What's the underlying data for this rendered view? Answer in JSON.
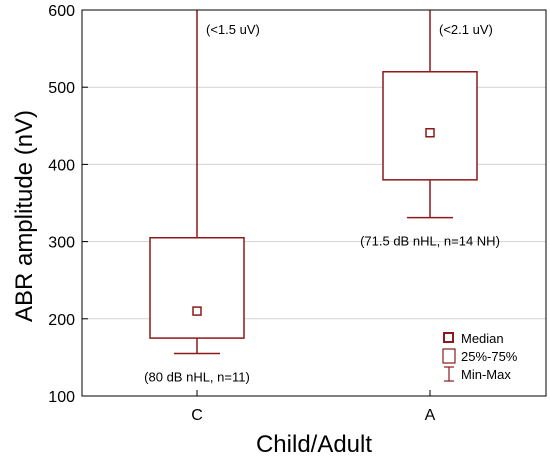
{
  "chart_data": {
    "type": "box",
    "xlabel": "Child/Adult",
    "ylabel": "ABR amplitude (nV)",
    "ylim": [
      100,
      600
    ],
    "yticks": [
      100,
      200,
      300,
      400,
      500,
      600
    ],
    "grid": true,
    "categories": [
      "C",
      "A"
    ],
    "boxes": [
      {
        "category": "C",
        "median": 210,
        "q1": 175,
        "q3": 305,
        "min": 155,
        "max": 600,
        "max_label": "(<1.5 uV)",
        "annotation": "(80 dB nHL, n=11)"
      },
      {
        "category": "A",
        "median": 441,
        "q1": 380,
        "q3": 520,
        "min": 331,
        "max": 600,
        "max_label": "(<2.1 uV)",
        "annotation": "(71.5 dB nHL, n=14 NH)"
      }
    ],
    "legend": {
      "position": "bottom-right",
      "items": [
        {
          "symbol": "median",
          "label": "Median"
        },
        {
          "symbol": "box",
          "label": "25%-75%"
        },
        {
          "symbol": "whisker",
          "label": "Min-Max"
        }
      ]
    },
    "colors": {
      "series": "#8b1a1a",
      "axis": "#000000",
      "grid": "#d3d3d3"
    }
  }
}
